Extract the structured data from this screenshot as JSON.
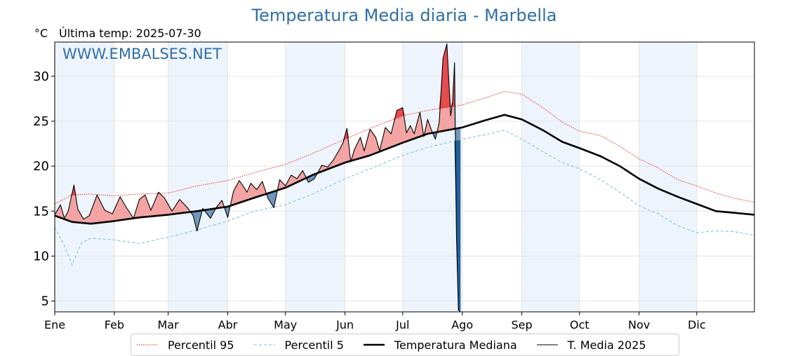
{
  "header": {
    "title": "Temperatura Media diaria - Marbella",
    "unit": "°C",
    "last_temp": "Última temp: 2025-07-30"
  },
  "watermark": "WWW.EMBALSES.NET",
  "legend": [
    {
      "label": "Percentil 95",
      "color": "#e41a1c",
      "style": "dotted"
    },
    {
      "label": "Percentil 5",
      "color": "#7fbfd4",
      "style": "dashed"
    },
    {
      "label": "Temperatura Mediana",
      "color": "#000000",
      "style": "thick"
    },
    {
      "label": "T. Media 2025",
      "color": "#000000",
      "style": "thin"
    }
  ],
  "colors": {
    "above_median_fill": "#f4a3a3",
    "above_p95_fill": "#e8474b",
    "below_median_fill": "#6f98bd",
    "below_p5_fill": "#1f5f9a",
    "month_band": "#eef4fb"
  },
  "chart_data": {
    "type": "line",
    "x_unit": "day_of_year",
    "ylim": [
      3.8,
      33.8
    ],
    "yticks": [
      5,
      10,
      15,
      20,
      25,
      30
    ],
    "xticks": [
      {
        "day": 1,
        "label": "Ene"
      },
      {
        "day": 32,
        "label": "Feb"
      },
      {
        "day": 60,
        "label": "Mar"
      },
      {
        "day": 91,
        "label": "Abr"
      },
      {
        "day": 121,
        "label": "May"
      },
      {
        "day": 152,
        "label": "Jun"
      },
      {
        "day": 182,
        "label": "Jul"
      },
      {
        "day": 213,
        "label": "Ago"
      },
      {
        "day": 244,
        "label": "Sep"
      },
      {
        "day": 274,
        "label": "Oct"
      },
      {
        "day": 305,
        "label": "Nov"
      },
      {
        "day": 335,
        "label": "Dic"
      }
    ],
    "grid": true,
    "legend_position": "bottom",
    "series": [
      {
        "name": "Percentil 95",
        "x": [
          1,
          10,
          20,
          32,
          45,
          60,
          75,
          91,
          105,
          121,
          135,
          152,
          165,
          182,
          195,
          213,
          225,
          235,
          244,
          255,
          265,
          274,
          285,
          295,
          305,
          315,
          325,
          335,
          345,
          355,
          365
        ],
        "y": [
          15.8,
          16.8,
          16.9,
          16.7,
          16.9,
          17.0,
          17.8,
          18.4,
          19.3,
          20.2,
          21.4,
          23.0,
          24.2,
          25.6,
          26.2,
          26.8,
          27.6,
          28.3,
          28.0,
          26.5,
          24.9,
          23.9,
          23.4,
          22.2,
          20.8,
          19.8,
          18.5,
          17.8,
          17.0,
          16.4,
          16.0
        ]
      },
      {
        "name": "Percentil 5",
        "x": [
          1,
          6,
          10,
          15,
          20,
          32,
          45,
          60,
          75,
          91,
          105,
          121,
          135,
          152,
          165,
          182,
          195,
          213,
          225,
          235,
          244,
          255,
          265,
          274,
          285,
          295,
          305,
          315,
          325,
          335,
          345,
          355,
          365
        ],
        "y": [
          13.2,
          11.2,
          9.0,
          11.5,
          12.0,
          11.8,
          11.4,
          12.1,
          12.9,
          13.9,
          15.0,
          15.7,
          16.9,
          18.6,
          19.7,
          21.2,
          22.1,
          23.0,
          23.5,
          24.0,
          23.0,
          21.6,
          20.4,
          19.7,
          18.5,
          17.1,
          15.6,
          14.7,
          13.4,
          12.6,
          12.8,
          12.7,
          12.3
        ]
      },
      {
        "name": "Temperatura Mediana",
        "x": [
          1,
          10,
          20,
          32,
          45,
          60,
          75,
          91,
          105,
          121,
          135,
          152,
          165,
          182,
          195,
          213,
          225,
          235,
          244,
          255,
          265,
          274,
          285,
          295,
          305,
          315,
          325,
          335,
          345,
          355,
          365
        ],
        "y": [
          14.5,
          13.8,
          13.6,
          13.9,
          14.3,
          14.6,
          15.0,
          15.5,
          16.5,
          17.6,
          19.0,
          20.4,
          21.2,
          22.6,
          23.6,
          24.3,
          25.1,
          25.7,
          25.2,
          24.0,
          22.7,
          22.0,
          21.1,
          20.0,
          18.6,
          17.5,
          16.6,
          15.8,
          15.0,
          14.8,
          14.6
        ]
      },
      {
        "name": "T. Media 2025",
        "x": [
          1,
          4,
          6,
          8,
          11,
          13,
          16,
          19,
          23,
          27,
          31,
          35,
          38,
          42,
          45,
          48,
          51,
          55,
          58,
          62,
          66,
          70,
          73,
          75,
          78,
          82,
          85,
          88,
          91,
          94,
          97,
          99,
          101,
          103,
          106,
          109,
          112,
          115,
          118,
          121,
          124,
          127,
          130,
          133,
          136,
          140,
          143,
          146,
          149,
          151,
          153,
          155,
          157,
          160,
          162,
          165,
          168,
          170,
          173,
          176,
          179,
          182,
          184,
          186,
          188,
          191,
          193,
          195,
          197,
          199,
          201,
          203,
          205,
          207,
          208,
          209,
          210,
          211,
          212
        ],
        "y": [
          14.6,
          15.7,
          14.2,
          15.0,
          17.9,
          15.2,
          14.1,
          14.5,
          16.8,
          15.1,
          14.7,
          16.6,
          15.5,
          14.2,
          16.3,
          16.8,
          15.1,
          17.1,
          16.5,
          15.0,
          16.3,
          15.4,
          14.5,
          12.8,
          15.3,
          14.2,
          15.4,
          16.2,
          14.3,
          17.2,
          18.4,
          17.8,
          17.1,
          18.1,
          17.4,
          18.3,
          16.4,
          15.4,
          18.5,
          17.8,
          19.0,
          18.6,
          19.5,
          18.2,
          18.6,
          20.1,
          19.9,
          20.7,
          21.8,
          22.6,
          24.2,
          20.5,
          21.9,
          23.2,
          21.7,
          24.1,
          23.2,
          21.7,
          24.3,
          23.6,
          26.2,
          26.5,
          23.7,
          24.5,
          23.6,
          26.0,
          23.3,
          25.2,
          24.0,
          23.0,
          24.8,
          32.0,
          33.6,
          25.6,
          27.2,
          31.5,
          12.0,
          4.0,
          3.8
        ]
      }
    ]
  }
}
